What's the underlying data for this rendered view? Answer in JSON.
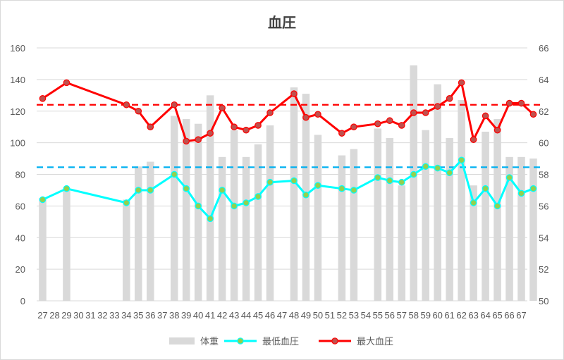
{
  "chart_data": {
    "type": "bar",
    "title": "血圧",
    "xlabel": "",
    "ylabel": "",
    "categories": [
      "27",
      "28",
      "29",
      "30",
      "31",
      "32",
      "33",
      "34",
      "35",
      "36",
      "37",
      "38",
      "39",
      "40",
      "41",
      "42",
      "43",
      "44",
      "45",
      "46",
      "47",
      "48",
      "49",
      "50",
      "51",
      "52",
      "53",
      "54",
      "55",
      "56",
      "57",
      "58",
      "59",
      "60",
      "61",
      "62",
      "63",
      "64",
      "65",
      "66",
      "67"
    ],
    "ylim_left": [
      0,
      160
    ],
    "yticks_left": [
      0,
      20,
      40,
      60,
      80,
      100,
      120,
      140,
      160
    ],
    "ylim_right": [
      50,
      66
    ],
    "yticks_right": [
      50,
      52,
      54,
      56,
      58,
      60,
      62,
      64,
      66
    ],
    "grid": true,
    "legend_position": "bottom",
    "series": [
      {
        "name": "体重",
        "kind": "bar",
        "axis": "right",
        "color": "#d9d9d9",
        "x": [
          27,
          29,
          34,
          35,
          36,
          38,
          39,
          40,
          41,
          42,
          43,
          44,
          45,
          46,
          48,
          49,
          50,
          52,
          53,
          55,
          56,
          57,
          58,
          59,
          60,
          61,
          62,
          63,
          64,
          65,
          66,
          67,
          68
        ],
        "values": [
          56.5,
          57.1,
          56.4,
          58.5,
          58.8,
          61.7,
          61.5,
          61.2,
          63.0,
          59.1,
          60.8,
          59.1,
          59.9,
          61.1,
          63.5,
          63.1,
          60.5,
          59.2,
          59.6,
          60.9,
          60.3,
          57.3,
          64.9,
          60.8,
          63.7,
          60.3,
          62.7,
          57.3,
          60.7,
          61.5,
          59.1,
          59.1,
          59.0
        ]
      },
      {
        "name": "最低血圧",
        "kind": "line",
        "axis": "left",
        "color": "#00ffff",
        "marker_fill": "#92d050",
        "x": [
          27,
          29,
          34,
          35,
          36,
          38,
          39,
          40,
          41,
          42,
          43,
          44,
          45,
          46,
          48,
          49,
          50,
          52,
          53,
          55,
          56,
          57,
          58,
          59,
          60,
          61,
          62,
          63,
          64,
          65,
          66,
          67,
          68
        ],
        "values": [
          64,
          71,
          62,
          70,
          70,
          80,
          71,
          60,
          52,
          70,
          60,
          62,
          66,
          75,
          76,
          67,
          73,
          71,
          70,
          78,
          76,
          75,
          80,
          85,
          84,
          81,
          89,
          62,
          71,
          60,
          78,
          68,
          71
        ]
      },
      {
        "name": "最大血圧",
        "kind": "line",
        "axis": "left",
        "color": "#ff0000",
        "marker_fill": "#c0504d",
        "x": [
          27,
          29,
          34,
          35,
          36,
          38,
          39,
          40,
          41,
          42,
          43,
          44,
          45,
          46,
          48,
          49,
          50,
          52,
          53,
          55,
          56,
          57,
          58,
          59,
          60,
          61,
          62,
          63,
          64,
          65,
          66,
          67,
          68
        ],
        "values": [
          128,
          138,
          124,
          120,
          110,
          124,
          101,
          102,
          106,
          122,
          110,
          108,
          111,
          119,
          131,
          116,
          118,
          106,
          110,
          112,
          114,
          111,
          119,
          119,
          123,
          128,
          138,
          102,
          117,
          108,
          125,
          125,
          118
        ]
      }
    ],
    "reference_lines": [
      {
        "axis": "left",
        "value": 124,
        "color": "#ff0000",
        "style": "dashed"
      },
      {
        "axis": "left",
        "value": 84.5,
        "color": "#00b0f0",
        "style": "dashed"
      }
    ]
  }
}
